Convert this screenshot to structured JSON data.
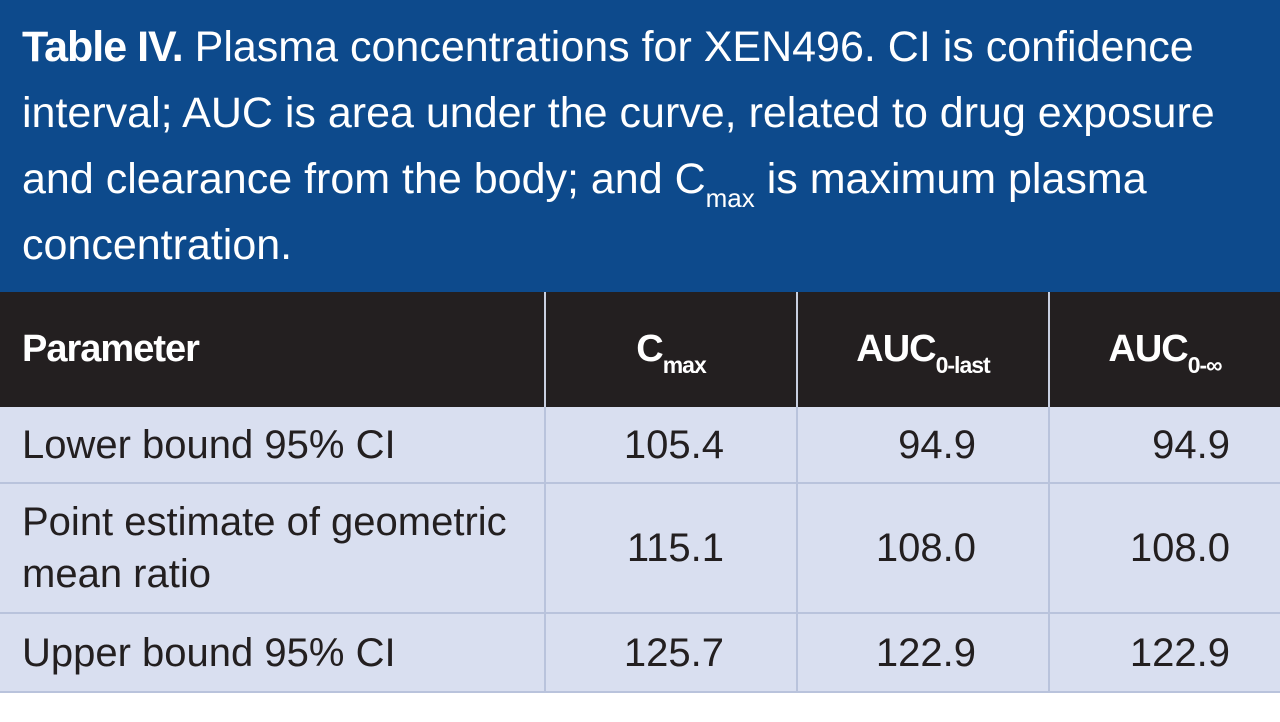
{
  "caption": {
    "label": "Table IV.",
    "text": "Plasma concentrations for XEN496. CI is confidence interval; AUC is area under the curve, related to drug exposure and clearance from the body; and C",
    "subscript": "max",
    "text_end": " is maximum plasma concentration."
  },
  "table": {
    "header": [
      {
        "main": "Parameter"
      },
      {
        "main": "C",
        "sub": "max"
      },
      {
        "main": "AUC",
        "sub": "0-last"
      },
      {
        "main": "AUC",
        "sub": "0-∞"
      }
    ],
    "rows": [
      [
        "Lower bound 95% CI",
        "105.4",
        "94.9",
        "94.9"
      ],
      [
        "Point estimate of geometric mean ratio",
        "115.1",
        "108.0",
        "108.0"
      ],
      [
        "Upper bound 95% CI",
        "125.7",
        "122.9",
        "122.9"
      ]
    ]
  }
}
